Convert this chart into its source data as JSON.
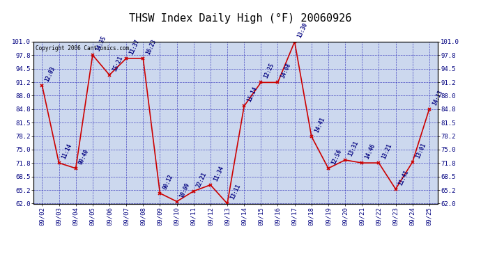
{
  "title": "THSW Index Daily High (°F) 20060926",
  "copyright": "Copyright 2006 Cantronics.com",
  "background_color": "#ffffff",
  "plot_bg_color": "#ccd8ee",
  "grid_color": "#3333bb",
  "line_color": "#cc0000",
  "marker_color": "#cc0000",
  "text_color": "#000080",
  "ylim": [
    62.0,
    101.0
  ],
  "yticks": [
    62.0,
    65.2,
    68.5,
    71.8,
    75.0,
    78.2,
    81.5,
    84.8,
    88.0,
    91.2,
    94.5,
    97.8,
    101.0
  ],
  "ytick_labels": [
    "62.0",
    "65.2",
    "68.5",
    "71.8",
    "75.0",
    "78.2",
    "81.5",
    "84.8",
    "88.0",
    "91.2",
    "94.5",
    "97.8",
    "101.0"
  ],
  "dates": [
    "09/02",
    "09/03",
    "09/04",
    "09/05",
    "09/06",
    "09/07",
    "09/08",
    "09/09",
    "09/10",
    "09/11",
    "09/12",
    "09/13",
    "09/14",
    "09/15",
    "09/16",
    "09/17",
    "09/18",
    "09/19",
    "09/20",
    "09/21",
    "09/22",
    "09/23",
    "09/24",
    "09/25"
  ],
  "values": [
    90.5,
    71.8,
    70.5,
    97.8,
    93.0,
    97.0,
    97.0,
    64.5,
    62.5,
    65.0,
    66.5,
    62.0,
    85.5,
    91.2,
    91.2,
    101.0,
    78.2,
    70.5,
    72.5,
    71.8,
    71.8,
    65.5,
    72.0,
    84.8
  ],
  "labels": [
    "12:03",
    "11:14",
    "09:40",
    "14:35",
    "15:21",
    "11:37",
    "16:23",
    "00:12",
    "10:09",
    "22:21",
    "11:34",
    "13:11",
    "11:14",
    "12:25",
    "14:08",
    "13:30",
    "14:41",
    "12:56",
    "13:31",
    "14:46",
    "13:21",
    "11:41",
    "13:01",
    "14:13"
  ],
  "title_fontsize": 11,
  "tick_fontsize": 6.5,
  "label_fontsize": 5.5,
  "copyright_fontsize": 5.5
}
